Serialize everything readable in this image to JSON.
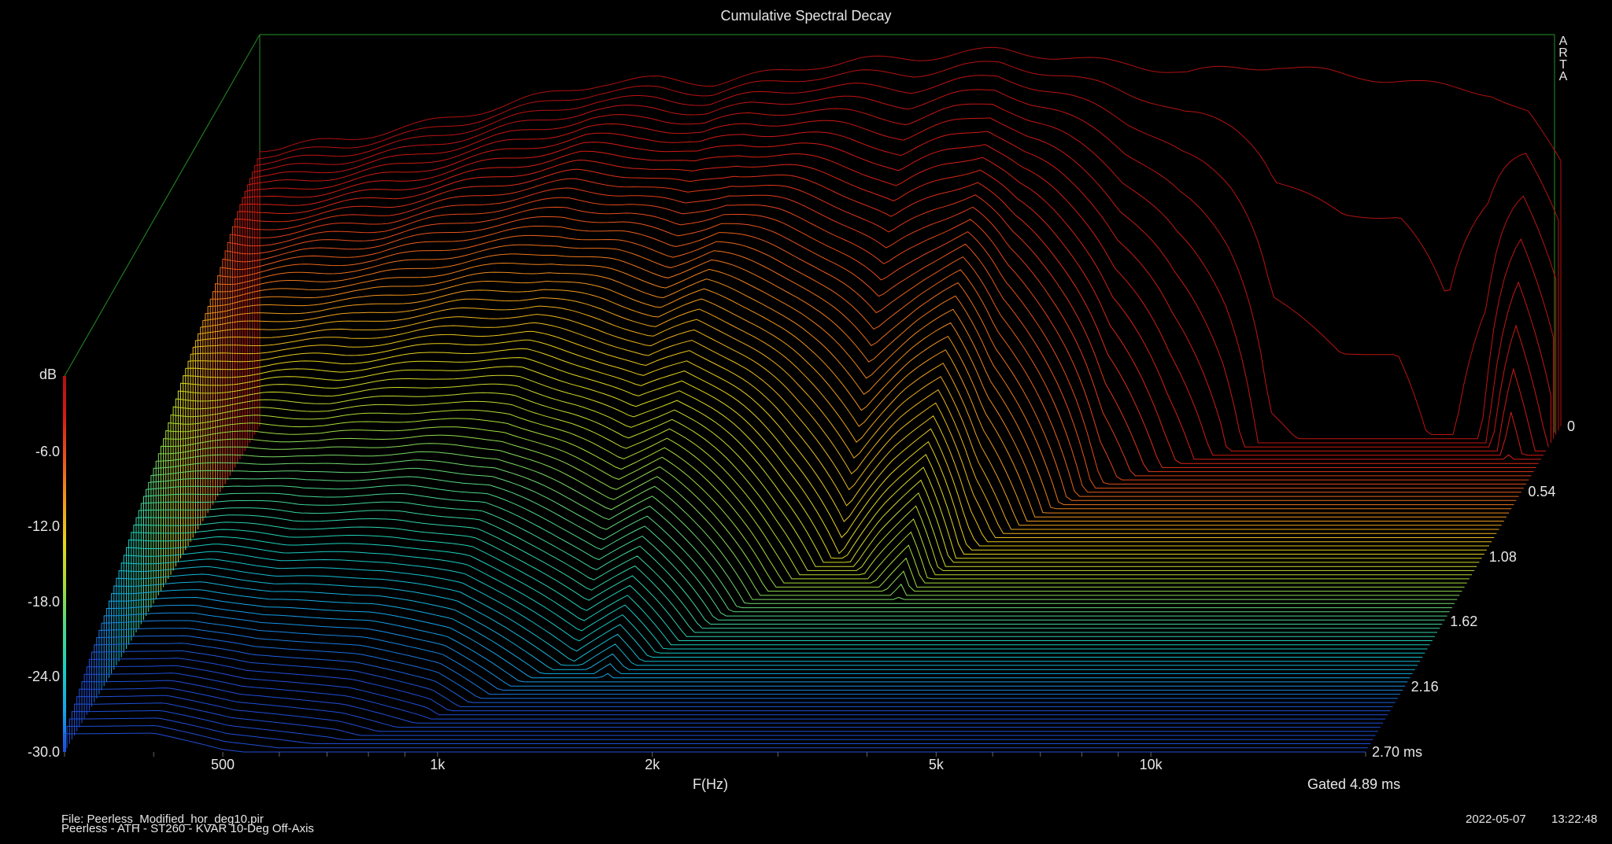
{
  "title": "Cumulative Spectral Decay",
  "brand_letters": [
    "A",
    "R",
    "T",
    "A"
  ],
  "footer": {
    "file_line": "File: Peerless_Modified_hor_deg10.pir",
    "description_line": "Peerless - ATH - ST260 - KVAR 10-Deg Off-Axis",
    "date": "2022-05-07",
    "time": "13:22:48"
  },
  "chart_data": {
    "type": "waterfall",
    "title": "Cumulative Spectral Decay",
    "xlabel": "F(Hz)",
    "ylabel": "dB",
    "zlabel_note": "Gated 4.89 ms",
    "x_scale": "log",
    "x_range_hz": [
      300,
      20000
    ],
    "x_ticks": [
      {
        "value": 500,
        "label": "500"
      },
      {
        "value": 1000,
        "label": "1k"
      },
      {
        "value": 2000,
        "label": "2k"
      },
      {
        "value": 5000,
        "label": "5k"
      },
      {
        "value": 10000,
        "label": "10k"
      }
    ],
    "y_range_db": [
      -30,
      0
    ],
    "y_ticks": [
      "-6.0",
      "-12.0",
      "-18.0",
      "-24.0",
      "-30.0"
    ],
    "time_ticks": [
      "0",
      "0.54",
      "1.08",
      "1.62",
      "2.16",
      "2.70 ms"
    ],
    "time_range_ms": [
      0,
      2.7
    ],
    "slice_count": 80,
    "colormap": [
      "#1f4fd8",
      "#14a6e8",
      "#18d0c0",
      "#4fd88a",
      "#a6dc3a",
      "#e6d61c",
      "#f09a1c",
      "#e8561c",
      "#d61c14",
      "#b01010"
    ],
    "frame_color": "#1f7a1f",
    "response_initial_db": [
      {
        "f": 320,
        "db": -7.8
      },
      {
        "f": 400,
        "db": -7.0
      },
      {
        "f": 500,
        "db": -6.0
      },
      {
        "f": 700,
        "db": -4.0
      },
      {
        "f": 900,
        "db": -2.6
      },
      {
        "f": 1100,
        "db": -2.3
      },
      {
        "f": 1300,
        "db": -2.6
      },
      {
        "f": 1500,
        "db": -2.0
      },
      {
        "f": 1800,
        "db": -1.2
      },
      {
        "f": 2100,
        "db": -0.8
      },
      {
        "f": 2500,
        "db": -0.6
      },
      {
        "f": 2900,
        "db": -0.2
      },
      {
        "f": 3300,
        "db": 0.0
      },
      {
        "f": 3700,
        "db": -0.3
      },
      {
        "f": 4300,
        "db": -0.8
      },
      {
        "f": 5000,
        "db": -1.1
      },
      {
        "f": 6000,
        "db": -1.8
      },
      {
        "f": 7000,
        "db": -1.4
      },
      {
        "f": 8000,
        "db": -1.2
      },
      {
        "f": 9000,
        "db": -1.6
      },
      {
        "f": 10000,
        "db": -2.0
      },
      {
        "f": 12000,
        "db": -2.4
      },
      {
        "f": 14000,
        "db": -3.0
      },
      {
        "f": 16000,
        "db": -3.4
      },
      {
        "f": 18000,
        "db": -5.0
      },
      {
        "f": 20000,
        "db": -9.0
      }
    ],
    "decay_ms_by_freq": [
      {
        "f": 320,
        "ms": 2.6
      },
      {
        "f": 400,
        "ms": 2.6
      },
      {
        "f": 500,
        "ms": 2.45
      },
      {
        "f": 700,
        "ms": 2.35
      },
      {
        "f": 900,
        "ms": 2.2
      },
      {
        "f": 1100,
        "ms": 1.95
      },
      {
        "f": 1300,
        "ms": 1.75
      },
      {
        "f": 1500,
        "ms": 1.9
      },
      {
        "f": 1800,
        "ms": 1.55
      },
      {
        "f": 2100,
        "ms": 1.25
      },
      {
        "f": 2500,
        "ms": 0.95
      },
      {
        "f": 2900,
        "ms": 1.15
      },
      {
        "f": 3300,
        "ms": 1.3
      },
      {
        "f": 3700,
        "ms": 0.95
      },
      {
        "f": 4300,
        "ms": 0.7
      },
      {
        "f": 5000,
        "ms": 0.45
      },
      {
        "f": 6000,
        "ms": 0.3
      },
      {
        "f": 7000,
        "ms": 0.2
      },
      {
        "f": 8000,
        "ms": 0.1
      },
      {
        "f": 10000,
        "ms": 0.08
      },
      {
        "f": 12000,
        "ms": 0.08
      },
      {
        "f": 14000,
        "ms": 0.05
      },
      {
        "f": 16000,
        "ms": 0.1
      },
      {
        "f": 18000,
        "ms": 0.25
      },
      {
        "f": 20000,
        "ms": 0.15
      }
    ]
  }
}
